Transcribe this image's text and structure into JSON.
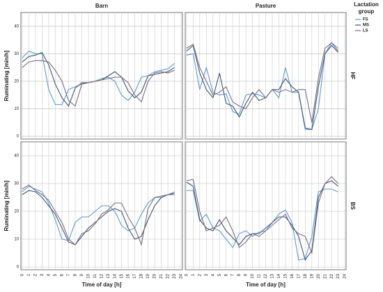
{
  "legend_title": "Lactation group",
  "chart_data": [
    {
      "type": "line",
      "title": "Barn",
      "row_label": "HF",
      "ylabel": "Ruminating [min/h]",
      "x": [
        0,
        1,
        2,
        3,
        4,
        5,
        6,
        7,
        8,
        9,
        10,
        11,
        12,
        13,
        14,
        15,
        16,
        17,
        18,
        19,
        20,
        21,
        22,
        23
      ],
      "xlim": [
        -0.2,
        24.2
      ],
      "ylim": [
        -1,
        45
      ],
      "yticks": [
        0,
        10,
        20,
        30,
        40
      ],
      "grid": true,
      "xticks": [
        0,
        1,
        2,
        3,
        4,
        5,
        6,
        7,
        8,
        9,
        10,
        11,
        12,
        13,
        14,
        15,
        16,
        17,
        18,
        19,
        20,
        21,
        22,
        23,
        24
      ],
      "series": [
        {
          "name": "FS",
          "color": "#5b9bd5",
          "values": [
            28.5,
            31,
            30,
            30,
            17,
            11.5,
            11.5,
            17,
            18,
            19,
            19.5,
            20,
            21,
            21.5,
            20,
            15,
            13,
            16,
            21.5,
            22,
            23.5,
            24,
            24.5,
            26.5
          ]
        },
        {
          "name": "MS",
          "color": "#3e5672",
          "values": [
            27,
            29,
            29.5,
            30.5,
            26,
            19,
            14,
            11,
            17.5,
            19.5,
            19.5,
            20,
            20.5,
            22,
            23.5,
            21.5,
            16.5,
            14,
            16,
            22,
            22.5,
            23,
            23.5,
            25
          ]
        },
        {
          "name": "LS",
          "color": "#7d6b84",
          "values": [
            25,
            27,
            27.5,
            27.5,
            27,
            24,
            20,
            13,
            11,
            19,
            19.5,
            20,
            20.5,
            21,
            21.5,
            21.5,
            19.5,
            15,
            12.5,
            20,
            23,
            23.5,
            23,
            24
          ]
        }
      ]
    },
    {
      "type": "line",
      "title": "Pasture",
      "row_label": "HF",
      "x": [
        0,
        1,
        2,
        3,
        4,
        5,
        6,
        7,
        8,
        9,
        10,
        11,
        12,
        13,
        14,
        15,
        16,
        17,
        18,
        19,
        20,
        21,
        22,
        23
      ],
      "xlim": [
        -0.2,
        24.2
      ],
      "ylim": [
        -1,
        45
      ],
      "yticks": [
        0,
        10,
        20,
        30,
        40
      ],
      "grid": true,
      "xticks": [
        0,
        1,
        2,
        3,
        4,
        5,
        6,
        7,
        8,
        9,
        10,
        11,
        12,
        13,
        14,
        15,
        16,
        17,
        18,
        19,
        20,
        21,
        22,
        23,
        24
      ],
      "series": [
        {
          "name": "FS",
          "color": "#5b9bd5",
          "values": [
            29.5,
            30,
            17,
            25,
            16,
            15,
            15.5,
            9,
            8,
            15,
            15.5,
            15,
            14,
            17,
            14,
            25,
            16,
            16,
            2.5,
            2.5,
            10,
            30,
            34,
            32
          ]
        },
        {
          "name": "MS",
          "color": "#3e5672",
          "values": [
            31,
            33,
            23,
            17,
            14,
            23,
            12,
            11,
            7,
            12,
            16,
            13,
            14,
            17,
            17,
            21,
            18,
            16,
            3,
            2.5,
            18,
            30,
            33,
            30.5
          ]
        },
        {
          "name": "LS",
          "color": "#7d6b84",
          "values": [
            32,
            33.5,
            25,
            20,
            15,
            16,
            18,
            12.5,
            11,
            10,
            14,
            17,
            14,
            17,
            16,
            17,
            16,
            17,
            17,
            5,
            21,
            32,
            34,
            31
          ]
        }
      ]
    },
    {
      "type": "line",
      "row_label": "BS",
      "ylabel": "Ruminating [min/h]",
      "xlabel": "Time of day [h]",
      "x": [
        0,
        1,
        2,
        3,
        4,
        5,
        6,
        7,
        8,
        9,
        10,
        11,
        12,
        13,
        14,
        15,
        16,
        17,
        18,
        19,
        20,
        21,
        22,
        23
      ],
      "xlim": [
        -0.2,
        24.2
      ],
      "ylim": [
        -1,
        45
      ],
      "yticks": [
        0,
        10,
        20,
        30,
        40
      ],
      "grid": true,
      "xticks": [
        0,
        1,
        2,
        3,
        4,
        5,
        6,
        7,
        8,
        9,
        10,
        11,
        12,
        13,
        14,
        15,
        16,
        17,
        18,
        19,
        20,
        21,
        22,
        23,
        24
      ],
      "series": [
        {
          "name": "FS",
          "color": "#5b9bd5",
          "values": [
            27,
            29,
            28,
            27,
            23,
            17,
            10,
            9.5,
            16,
            18,
            18,
            20,
            22,
            22,
            20,
            15,
            13,
            14,
            19,
            23,
            25,
            25,
            26,
            27
          ]
        },
        {
          "name": "MS",
          "color": "#3e5672",
          "values": [
            26,
            27.5,
            27,
            25,
            22,
            19,
            14,
            9,
            8,
            11,
            14,
            16,
            18,
            20,
            21,
            20,
            14,
            10,
            11,
            17,
            22,
            25,
            26,
            26.5
          ]
        },
        {
          "name": "LS",
          "color": "#7d6b84",
          "values": [
            28,
            29.5,
            27.5,
            26,
            24,
            20,
            16,
            10,
            8,
            12,
            13,
            15.5,
            19,
            20.5,
            23,
            23,
            18,
            14,
            8,
            21,
            25,
            25.5,
            26,
            26
          ]
        }
      ]
    },
    {
      "type": "line",
      "row_label": "BS",
      "xlabel": "Time of day [h]",
      "x": [
        0,
        1,
        2,
        3,
        4,
        5,
        6,
        7,
        8,
        9,
        10,
        11,
        12,
        13,
        14,
        15,
        16,
        17,
        18,
        19,
        20,
        21,
        22,
        23
      ],
      "xlim": [
        -0.2,
        24.2
      ],
      "ylim": [
        -1,
        45
      ],
      "yticks": [
        0,
        10,
        20,
        30,
        40
      ],
      "grid": true,
      "xticks": [
        0,
        1,
        2,
        3,
        4,
        5,
        6,
        7,
        8,
        9,
        10,
        11,
        12,
        13,
        14,
        15,
        16,
        17,
        18,
        19,
        20,
        21,
        22,
        23,
        24
      ],
      "series": [
        {
          "name": "FS",
          "color": "#5b9bd5",
          "values": [
            27.5,
            27.5,
            16.5,
            19,
            14,
            13,
            10,
            7,
            12,
            13,
            11,
            12.5,
            13,
            16,
            19,
            20.5,
            16,
            2.5,
            3,
            11,
            27,
            28,
            28,
            27
          ]
        },
        {
          "name": "MS",
          "color": "#3e5672",
          "values": [
            30.5,
            29,
            17,
            14,
            13,
            17,
            13,
            10.5,
            8,
            11,
            12,
            12,
            14,
            16,
            18,
            18,
            15,
            11,
            2.5,
            6,
            25,
            30,
            31,
            29
          ]
        },
        {
          "name": "LS",
          "color": "#7d6b84",
          "values": [
            31,
            31.5,
            20,
            13,
            14,
            15,
            18,
            13,
            7,
            9,
            12,
            11,
            13,
            15,
            17,
            19,
            14,
            12,
            11,
            5,
            23,
            30,
            32.5,
            30
          ]
        }
      ]
    }
  ]
}
